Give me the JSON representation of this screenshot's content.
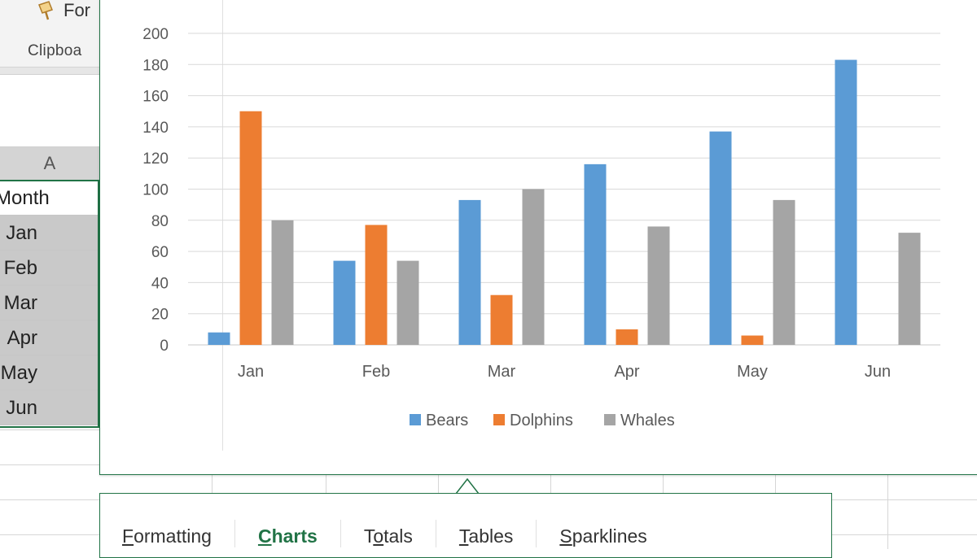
{
  "ribbon": {
    "format_label": "For",
    "clipboard_label": "Clipboa"
  },
  "sheet": {
    "column_header": "A",
    "cells": [
      "Month",
      "Jan",
      "Feb",
      "Mar",
      "Apr",
      "May",
      "Jun"
    ]
  },
  "quick_analysis": {
    "tabs": [
      {
        "label": "Formatting",
        "underline": "F"
      },
      {
        "label": "Charts",
        "underline": "C"
      },
      {
        "label": "Totals",
        "underline": "o"
      },
      {
        "label": "Tables",
        "underline": "T"
      },
      {
        "label": "Sparklines",
        "underline": "S"
      }
    ],
    "active_tab": "Charts"
  },
  "colors": {
    "bears": "#5b9bd5",
    "dolphins": "#ed7d31",
    "whales": "#a5a5a5",
    "excel_green": "#217346"
  },
  "chart_data": {
    "type": "bar",
    "title": "",
    "categories": [
      "Jan",
      "Feb",
      "Mar",
      "Apr",
      "May",
      "Jun"
    ],
    "series": [
      {
        "name": "Bears",
        "values": [
          8,
          54,
          93,
          116,
          137,
          183
        ]
      },
      {
        "name": "Dolphins",
        "values": [
          150,
          77,
          32,
          10,
          6,
          0
        ]
      },
      {
        "name": "Whales",
        "values": [
          80,
          54,
          100,
          76,
          93,
          72
        ]
      }
    ],
    "ylim": [
      0,
      200
    ],
    "yticks": [
      0,
      20,
      40,
      60,
      80,
      100,
      120,
      140,
      160,
      180,
      200
    ],
    "xlabel": "",
    "ylabel": "",
    "legend": "bottom",
    "grid": true
  }
}
